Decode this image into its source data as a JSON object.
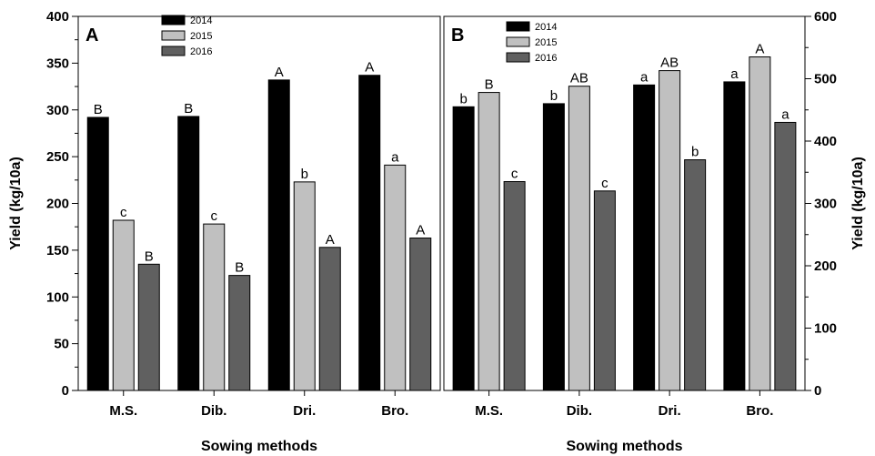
{
  "colors": {
    "2014": "#000000",
    "2015": "#c0c0c0",
    "2016": "#606060"
  },
  "chart_data": [
    {
      "type": "bar",
      "panel_label": "A",
      "categories": [
        "M.S.",
        "Dib.",
        "Dri.",
        "Bro."
      ],
      "xlabel": "Sowing methods",
      "ylabel": "Yield (kg/10a)",
      "ylim": [
        0,
        400
      ],
      "yticks": [
        0,
        50,
        100,
        150,
        200,
        250,
        300,
        350,
        400
      ],
      "y_axis_side": "left",
      "legend": {
        "position": "top-center",
        "entries": [
          "2014",
          "2015",
          "2016"
        ]
      },
      "series": [
        {
          "name": "2014",
          "values": [
            292,
            293,
            332,
            337
          ],
          "labels": [
            "B",
            "B",
            "A",
            "A"
          ]
        },
        {
          "name": "2015",
          "values": [
            182,
            178,
            223,
            241
          ],
          "labels": [
            "c",
            "c",
            "b",
            "a"
          ]
        },
        {
          "name": "2016",
          "values": [
            135,
            123,
            153,
            163
          ],
          "labels": [
            "B",
            "B",
            "A",
            "A"
          ]
        }
      ]
    },
    {
      "type": "bar",
      "panel_label": "B",
      "categories": [
        "M.S.",
        "Dib.",
        "Dri.",
        "Bro."
      ],
      "xlabel": "Sowing methods",
      "ylabel": "Yield (kg/10a)",
      "ylim": [
        0,
        600
      ],
      "yticks": [
        0,
        100,
        200,
        300,
        400,
        500,
        600
      ],
      "y_axis_side": "right",
      "legend": {
        "position": "top-left",
        "entries": [
          "2014",
          "2015",
          "2016"
        ]
      },
      "series": [
        {
          "name": "2014",
          "values": [
            455,
            460,
            490,
            495
          ],
          "labels": [
            "b",
            "b",
            "a",
            "a"
          ]
        },
        {
          "name": "2015",
          "values": [
            478,
            488,
            513,
            535
          ],
          "labels": [
            "B",
            "AB",
            "AB",
            "A"
          ]
        },
        {
          "name": "2016",
          "values": [
            335,
            320,
            370,
            430
          ],
          "labels": [
            "c",
            "c",
            "b",
            "a"
          ]
        }
      ]
    }
  ]
}
